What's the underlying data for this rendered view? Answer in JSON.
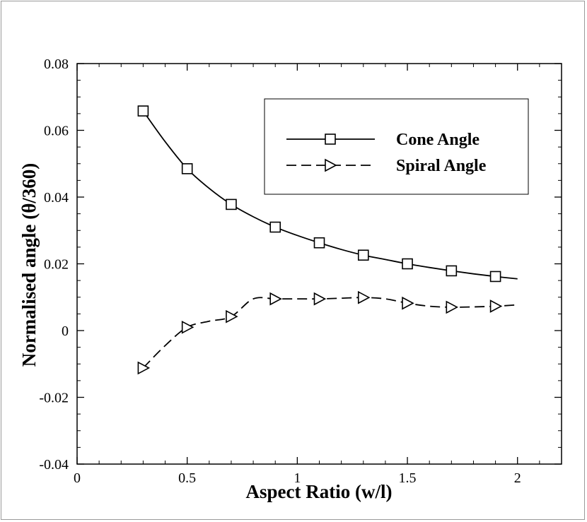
{
  "chart_data": {
    "type": "line",
    "title": "",
    "xlabel": "Aspect Ratio (w/l)",
    "ylabel": "Normalised angle (θ/360)",
    "xlim": [
      0,
      2.2
    ],
    "ylim": [
      -0.04,
      0.08
    ],
    "xticks": [
      0,
      0.5,
      1,
      1.5,
      2
    ],
    "xtick_labels": [
      "0",
      "0.5",
      "1",
      "1.5",
      "2"
    ],
    "yticks": [
      -0.04,
      -0.02,
      0,
      0.02,
      0.04,
      0.06,
      0.08
    ],
    "ytick_labels": [
      "-0.04",
      "-0.02",
      "0",
      "0.02",
      "0.04",
      "0.06",
      "0.08"
    ],
    "grid": false,
    "legend_position": "top-right",
    "series": [
      {
        "name": "Cone Angle",
        "line_style": "solid",
        "marker": "square",
        "curve_x": [
          0.3,
          0.4,
          0.5,
          0.6,
          0.7,
          0.8,
          0.9,
          1.0,
          1.1,
          1.2,
          1.3,
          1.4,
          1.5,
          1.6,
          1.7,
          1.8,
          1.9,
          2.0
        ],
        "curve_y": [
          0.0658,
          0.0566,
          0.0485,
          0.0426,
          0.0378,
          0.0341,
          0.031,
          0.0285,
          0.0263,
          0.0243,
          0.0226,
          0.0213,
          0.02,
          0.0189,
          0.0179,
          0.017,
          0.0162,
          0.0155
        ],
        "marker_x": [
          0.3,
          0.5,
          0.7,
          0.9,
          1.1,
          1.3,
          1.5,
          1.7,
          1.9
        ],
        "marker_y": [
          0.0658,
          0.0485,
          0.0378,
          0.031,
          0.0263,
          0.0226,
          0.02,
          0.0179,
          0.0162
        ]
      },
      {
        "name": "Spiral Angle",
        "line_style": "dashed",
        "marker": "right-triangle",
        "curve_x": [
          0.3,
          0.4,
          0.5,
          0.6,
          0.7,
          0.8,
          0.9,
          1.0,
          1.1,
          1.2,
          1.3,
          1.4,
          1.5,
          1.6,
          1.7,
          1.8,
          1.9,
          2.0
        ],
        "curve_y": [
          -0.0112,
          -0.0045,
          0.001,
          0.0028,
          0.0042,
          0.0095,
          0.0095,
          0.0095,
          0.0095,
          0.0097,
          0.0099,
          0.0095,
          0.0082,
          0.0073,
          0.007,
          0.0071,
          0.0073,
          0.0077
        ],
        "marker_x": [
          0.3,
          0.5,
          0.7,
          0.9,
          1.1,
          1.3,
          1.5,
          1.7,
          1.9
        ],
        "marker_y": [
          -0.0112,
          0.001,
          0.0042,
          0.0095,
          0.0095,
          0.0099,
          0.0082,
          0.007,
          0.0073
        ]
      }
    ]
  }
}
